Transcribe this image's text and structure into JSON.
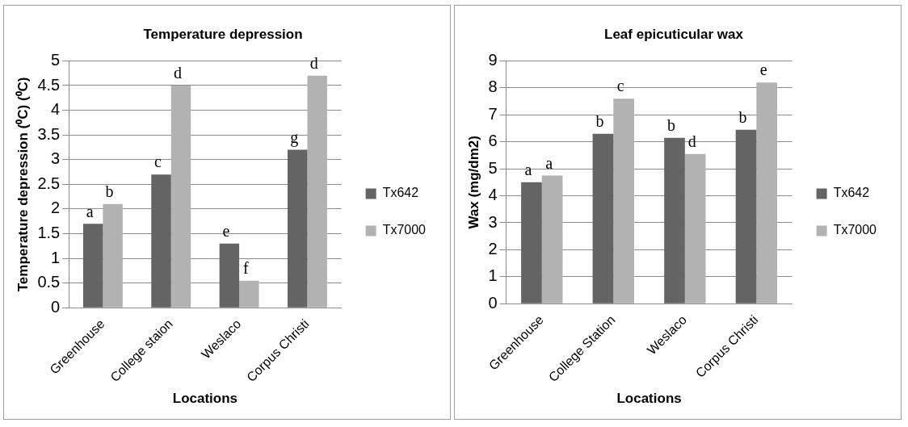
{
  "chart_data": [
    {
      "type": "bar",
      "title": "Temperature depression",
      "xlabel": "Locations",
      "ylabel": "Temperature depression (⁰C) (⁰C)",
      "categories": [
        "Greenhouse",
        "College staion",
        "Weslaco",
        "Corpus Christi"
      ],
      "series": [
        {
          "name": "Tx642",
          "color": "#646464",
          "values": [
            1.7,
            2.7,
            1.3,
            3.2
          ]
        },
        {
          "name": "Tx7000",
          "color": "#b2b2b2",
          "values": [
            2.1,
            4.5,
            0.55,
            4.7
          ]
        }
      ],
      "ylim": [
        0,
        5
      ],
      "yticks": [
        0,
        0.5,
        1,
        1.5,
        2,
        2.5,
        3,
        3.5,
        4,
        4.5,
        5
      ],
      "grid": "y",
      "legend": "right",
      "annotations": [
        {
          "text": "a",
          "x": "Greenhouse",
          "y": 1.7
        },
        {
          "text": "b",
          "x": "Greenhouse",
          "y": 2.1
        },
        {
          "text": "c",
          "x": "College staion",
          "y": 2.7
        },
        {
          "text": "d",
          "x": "College staion",
          "y": 4.5
        },
        {
          "text": "e",
          "x": "Weslaco",
          "y": 1.3
        },
        {
          "text": "f",
          "x": "Weslaco",
          "y": 0.55
        },
        {
          "text": "g",
          "x": "Corpus Christi",
          "y": 3.2
        },
        {
          "text": "d",
          "x": "Corpus Christi",
          "y": 4.7
        }
      ]
    },
    {
      "type": "bar",
      "title": "Leaf epicuticular wax",
      "xlabel": "Locations",
      "ylabel": "Wax (mg/dm2)",
      "categories": [
        "Greenhouse",
        "College Station",
        "Weslaco",
        "Corpus Christi"
      ],
      "series": [
        {
          "name": "Tx642",
          "color": "#646464",
          "values": [
            4.5,
            6.3,
            6.15,
            6.45
          ]
        },
        {
          "name": "Tx7000",
          "color": "#b2b2b2",
          "values": [
            4.75,
            7.6,
            5.55,
            8.2
          ]
        }
      ],
      "ylim": [
        0,
        9
      ],
      "yticks": [
        0,
        1,
        2,
        3,
        4,
        5,
        6,
        7,
        8,
        9
      ],
      "grid": "y",
      "legend": "right",
      "annotations": [
        {
          "text": "a",
          "x": "Greenhouse",
          "y": 4.5
        },
        {
          "text": "a",
          "x": "Greenhouse",
          "y": 4.75
        },
        {
          "text": "b",
          "x": "College Station",
          "y": 6.3
        },
        {
          "text": "c",
          "x": "College Station",
          "y": 7.6
        },
        {
          "text": "b",
          "x": "Weslaco",
          "y": 6.15
        },
        {
          "text": "d",
          "x": "Weslaco",
          "y": 5.55
        },
        {
          "text": "b",
          "x": "Corpus Christi",
          "y": 6.45
        },
        {
          "text": "e",
          "x": "Corpus Christi",
          "y": 8.2
        }
      ]
    }
  ]
}
